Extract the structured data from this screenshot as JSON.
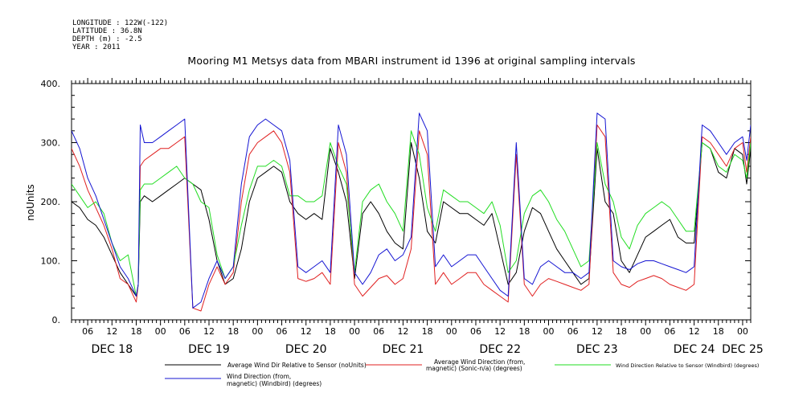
{
  "header": {
    "meta_lines": [
      "LONGITUDE : 122W(-122)",
      "LATITUDE : 36.8N",
      "DEPTH (m) : -2.5",
      "YEAR : 2011"
    ]
  },
  "chart_data": {
    "type": "line",
    "title": "Mooring M1 Metsys data from MBARI instrument id 1396 at original sampling intervals",
    "ylabel": "noUnits",
    "xlabel": "",
    "ylim": [
      0,
      400
    ],
    "yticks": [
      "0.",
      "100.",
      "200.",
      "300.",
      "400."
    ],
    "x_unit": "hours since 2011-12-17 00:00",
    "xlim": [
      2,
      170
    ],
    "hour_ticks": [
      {
        "x": 6,
        "label": "06"
      },
      {
        "x": 12,
        "label": "12"
      },
      {
        "x": 18,
        "label": "18"
      },
      {
        "x": 24,
        "label": "00"
      },
      {
        "x": 30,
        "label": "06"
      },
      {
        "x": 36,
        "label": "12"
      },
      {
        "x": 42,
        "label": "18"
      },
      {
        "x": 48,
        "label": "00"
      },
      {
        "x": 54,
        "label": "06"
      },
      {
        "x": 60,
        "label": "12"
      },
      {
        "x": 66,
        "label": "18"
      },
      {
        "x": 72,
        "label": "00"
      },
      {
        "x": 78,
        "label": "06"
      },
      {
        "x": 84,
        "label": "12"
      },
      {
        "x": 90,
        "label": "18"
      },
      {
        "x": 96,
        "label": "00"
      },
      {
        "x": 102,
        "label": "06"
      },
      {
        "x": 108,
        "label": "12"
      },
      {
        "x": 114,
        "label": "18"
      },
      {
        "x": 120,
        "label": "00"
      },
      {
        "x": 126,
        "label": "06"
      },
      {
        "x": 132,
        "label": "12"
      },
      {
        "x": 138,
        "label": "18"
      },
      {
        "x": 144,
        "label": "00"
      },
      {
        "x": 150,
        "label": "06"
      },
      {
        "x": 156,
        "label": "12"
      },
      {
        "x": 162,
        "label": "18"
      },
      {
        "x": 168,
        "label": "00"
      }
    ],
    "day_labels": [
      {
        "x": 12,
        "label": "DEC 18"
      },
      {
        "x": 36,
        "label": "DEC 19"
      },
      {
        "x": 60,
        "label": "DEC 20"
      },
      {
        "x": 84,
        "label": "DEC 21"
      },
      {
        "x": 108,
        "label": "DEC 22"
      },
      {
        "x": 132,
        "label": "DEC 23"
      },
      {
        "x": 156,
        "label": "DEC 24"
      },
      {
        "x": 168,
        "label": "DEC 25"
      }
    ],
    "series": [
      {
        "name": "Average Wind Dir Relative to Sensor (noUnits)",
        "color": "#000000",
        "x": [
          2,
          4,
          6,
          8,
          10,
          12,
          14,
          16,
          18,
          18.5,
          19,
          20,
          22,
          24,
          26,
          28,
          30,
          32,
          34,
          36,
          38,
          40,
          42,
          44,
          46,
          48,
          50,
          52,
          54,
          56,
          58,
          60,
          62,
          64,
          66,
          68,
          70,
          72,
          74,
          76,
          78,
          80,
          82,
          84,
          86,
          88,
          90,
          92,
          94,
          96,
          98,
          100,
          102,
          104,
          106,
          108,
          110,
          112,
          114,
          116,
          118,
          120,
          122,
          124,
          126,
          128,
          130,
          132,
          134,
          136,
          138,
          140,
          142,
          144,
          146,
          148,
          150,
          152,
          154,
          156,
          158,
          160,
          162,
          164,
          166,
          168,
          169,
          170
        ],
        "y": [
          200,
          190,
          170,
          160,
          140,
          110,
          80,
          60,
          40,
          60,
          200,
          210,
          200,
          210,
          220,
          230,
          240,
          230,
          220,
          170,
          100,
          60,
          70,
          120,
          200,
          240,
          250,
          260,
          250,
          200,
          180,
          170,
          180,
          170,
          290,
          250,
          200,
          70,
          180,
          200,
          180,
          150,
          130,
          120,
          300,
          240,
          150,
          130,
          200,
          190,
          180,
          180,
          170,
          160,
          180,
          120,
          60,
          80,
          150,
          190,
          180,
          150,
          120,
          100,
          80,
          60,
          70,
          290,
          200,
          180,
          100,
          80,
          110,
          140,
          150,
          160,
          170,
          140,
          130,
          130,
          300,
          290,
          250,
          240,
          290,
          280,
          230,
          290
        ]
      },
      {
        "name": "Average Wind Direction (from, magnetic) (Sonic-n/a) (degrees)",
        "color": "#e02020",
        "x": [
          2,
          4,
          6,
          8,
          10,
          12,
          14,
          16,
          18,
          18.5,
          19,
          20,
          22,
          24,
          26,
          28,
          30,
          32,
          34,
          36,
          38,
          40,
          42,
          44,
          46,
          48,
          50,
          52,
          54,
          56,
          58,
          60,
          62,
          64,
          66,
          68,
          70,
          72,
          74,
          76,
          78,
          80,
          82,
          84,
          86,
          88,
          90,
          92,
          94,
          96,
          98,
          100,
          102,
          104,
          106,
          108,
          110,
          112,
          114,
          116,
          118,
          120,
          122,
          124,
          126,
          128,
          130,
          132,
          134,
          136,
          138,
          140,
          142,
          144,
          146,
          148,
          150,
          152,
          154,
          156,
          158,
          160,
          162,
          164,
          166,
          168,
          169,
          170
        ],
        "y": [
          290,
          260,
          220,
          190,
          160,
          120,
          70,
          60,
          30,
          60,
          260,
          270,
          280,
          290,
          290,
          300,
          310,
          20,
          15,
          60,
          90,
          60,
          80,
          200,
          280,
          300,
          310,
          320,
          300,
          250,
          70,
          65,
          70,
          80,
          60,
          300,
          250,
          60,
          40,
          55,
          70,
          75,
          60,
          70,
          120,
          320,
          280,
          60,
          80,
          60,
          70,
          80,
          80,
          60,
          50,
          40,
          30,
          280,
          60,
          40,
          60,
          70,
          65,
          60,
          55,
          50,
          60,
          330,
          310,
          80,
          60,
          55,
          65,
          70,
          75,
          70,
          60,
          55,
          50,
          60,
          310,
          300,
          280,
          260,
          290,
          300,
          250,
          310
        ]
      },
      {
        "name": "Wind Direction Relative to Sensor (Windbird) (degrees)",
        "color": "#22dd22",
        "x": [
          2,
          4,
          6,
          8,
          10,
          12,
          14,
          16,
          18,
          18.5,
          19,
          20,
          22,
          24,
          26,
          28,
          30,
          32,
          34,
          36,
          38,
          40,
          42,
          44,
          46,
          48,
          50,
          52,
          54,
          56,
          58,
          60,
          62,
          64,
          66,
          68,
          70,
          72,
          74,
          76,
          78,
          80,
          82,
          84,
          86,
          88,
          90,
          92,
          94,
          96,
          98,
          100,
          102,
          104,
          106,
          108,
          110,
          112,
          114,
          116,
          118,
          120,
          122,
          124,
          126,
          128,
          130,
          132,
          134,
          136,
          138,
          140,
          142,
          144,
          146,
          148,
          150,
          152,
          154,
          156,
          158,
          160,
          162,
          164,
          166,
          168,
          169,
          170
        ],
        "y": [
          230,
          210,
          190,
          200,
          180,
          130,
          100,
          110,
          40,
          60,
          220,
          230,
          230,
          240,
          250,
          260,
          240,
          230,
          200,
          190,
          110,
          70,
          90,
          160,
          220,
          260,
          260,
          270,
          260,
          210,
          210,
          200,
          200,
          210,
          300,
          260,
          230,
          80,
          200,
          220,
          230,
          200,
          180,
          150,
          320,
          280,
          190,
          150,
          220,
          210,
          200,
          200,
          190,
          180,
          200,
          160,
          80,
          100,
          180,
          210,
          220,
          200,
          170,
          150,
          120,
          90,
          100,
          300,
          230,
          200,
          140,
          120,
          160,
          180,
          190,
          200,
          190,
          170,
          150,
          150,
          300,
          290,
          260,
          250,
          280,
          270,
          240,
          300
        ]
      },
      {
        "name": "Wind Direction (from, magnetic) (Windbird) (degrees)",
        "color": "#1414d2",
        "x": [
          2,
          4,
          6,
          8,
          10,
          12,
          14,
          16,
          18,
          18.5,
          19,
          20,
          22,
          24,
          26,
          28,
          30,
          32,
          34,
          36,
          38,
          40,
          42,
          44,
          46,
          48,
          50,
          52,
          54,
          56,
          58,
          60,
          62,
          64,
          66,
          68,
          70,
          72,
          74,
          76,
          78,
          80,
          82,
          84,
          86,
          88,
          90,
          92,
          94,
          96,
          98,
          100,
          102,
          104,
          106,
          108,
          110,
          112,
          114,
          116,
          118,
          120,
          122,
          124,
          126,
          128,
          130,
          132,
          134,
          136,
          138,
          140,
          142,
          144,
          146,
          148,
          150,
          152,
          154,
          156,
          158,
          160,
          162,
          164,
          166,
          168,
          169,
          170
        ],
        "y": [
          320,
          290,
          240,
          210,
          170,
          130,
          90,
          70,
          40,
          60,
          330,
          300,
          300,
          310,
          320,
          330,
          340,
          20,
          30,
          70,
          100,
          70,
          90,
          230,
          310,
          330,
          340,
          330,
          320,
          270,
          90,
          80,
          90,
          100,
          80,
          330,
          280,
          80,
          60,
          80,
          110,
          120,
          100,
          110,
          140,
          350,
          320,
          90,
          110,
          90,
          100,
          110,
          110,
          90,
          70,
          50,
          40,
          300,
          70,
          60,
          90,
          100,
          90,
          80,
          80,
          70,
          80,
          350,
          340,
          100,
          90,
          85,
          95,
          100,
          100,
          95,
          90,
          85,
          80,
          90,
          330,
          320,
          300,
          280,
          300,
          310,
          270,
          330
        ]
      }
    ],
    "legend_placement": "bottom",
    "grid": false
  }
}
